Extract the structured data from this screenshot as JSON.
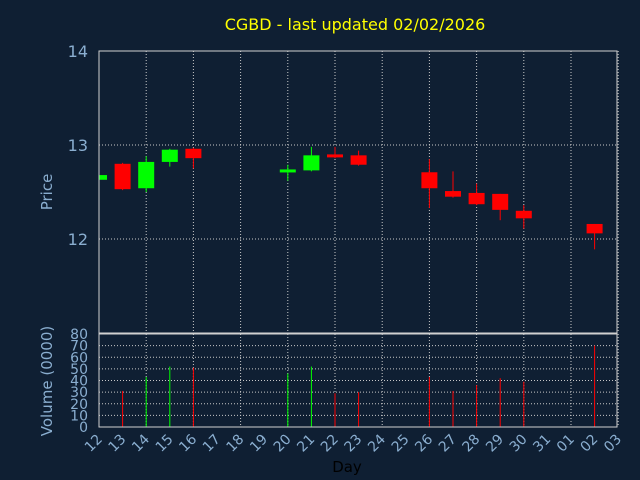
{
  "chart_data": {
    "type": "candlestick",
    "title": "CGBD - last updated 02/02/2026",
    "xlabel": "Day",
    "price_panel": {
      "ylabel": "Price",
      "ylim": [
        11.0,
        14.0
      ],
      "yticks": [
        12,
        13,
        14
      ],
      "grid": true
    },
    "volume_panel": {
      "ylabel": "Volume (0000)",
      "ylim": [
        0,
        80
      ],
      "yticks": [
        0,
        10,
        20,
        30,
        40,
        50,
        60,
        70,
        80
      ],
      "grid": true
    },
    "categories": [
      "12",
      "13",
      "14",
      "15",
      "16",
      "17",
      "18",
      "19",
      "20",
      "21",
      "22",
      "23",
      "24",
      "25",
      "26",
      "27",
      "28",
      "29",
      "30",
      "31",
      "01",
      "02",
      "03"
    ],
    "colors": {
      "up": "#00ff00",
      "down": "#ff0000",
      "grid": "#c8c8c8",
      "frame": "#d0d0d0",
      "background": "#0f1f33",
      "title": "#ffff00",
      "axis_text": "#8aaed0"
    },
    "candles": [
      {
        "day": "12",
        "open": 12.63,
        "close": 12.68,
        "high": 12.68,
        "low": 12.63,
        "volume": 0
      },
      {
        "day": "13",
        "open": 12.8,
        "close": 12.53,
        "high": 12.81,
        "low": 12.52,
        "volume": 31
      },
      {
        "day": "14",
        "open": 12.54,
        "close": 12.82,
        "high": 12.88,
        "low": 12.5,
        "volume": 43
      },
      {
        "day": "15",
        "open": 12.82,
        "close": 12.95,
        "high": 12.96,
        "low": 12.77,
        "volume": 52
      },
      {
        "day": "16",
        "open": 12.96,
        "close": 12.86,
        "high": 12.97,
        "low": 12.75,
        "volume": 51
      },
      {
        "day": "20",
        "open": 12.71,
        "close": 12.74,
        "high": 12.79,
        "low": 12.62,
        "volume": 46
      },
      {
        "day": "21",
        "open": 12.73,
        "close": 12.89,
        "high": 12.98,
        "low": 12.72,
        "volume": 52
      },
      {
        "day": "22",
        "open": 12.9,
        "close": 12.87,
        "high": 12.98,
        "low": 12.86,
        "volume": 29
      },
      {
        "day": "23",
        "open": 12.89,
        "close": 12.79,
        "high": 12.94,
        "low": 12.78,
        "volume": 30
      },
      {
        "day": "26",
        "open": 12.71,
        "close": 12.54,
        "high": 12.85,
        "low": 12.33,
        "volume": 43
      },
      {
        "day": "27",
        "open": 12.51,
        "close": 12.45,
        "high": 12.72,
        "low": 12.44,
        "volume": 31
      },
      {
        "day": "28",
        "open": 12.49,
        "close": 12.37,
        "high": 12.59,
        "low": 12.36,
        "volume": 36
      },
      {
        "day": "29",
        "open": 12.48,
        "close": 12.31,
        "high": 12.48,
        "low": 12.2,
        "volume": 42
      },
      {
        "day": "30",
        "open": 12.3,
        "close": 12.22,
        "high": 12.36,
        "low": 12.11,
        "volume": 39
      },
      {
        "day": "02",
        "open": 12.16,
        "close": 12.06,
        "high": 12.16,
        "low": 11.89,
        "volume": 70
      }
    ]
  }
}
